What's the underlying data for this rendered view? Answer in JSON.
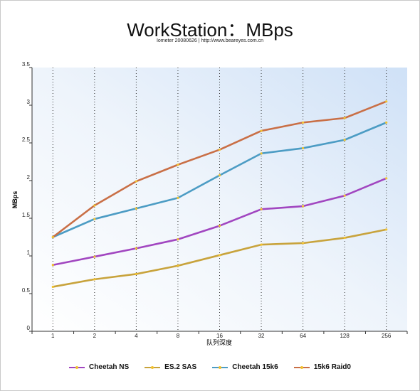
{
  "chart_data": {
    "type": "line",
    "title": "WorkStation：MBps",
    "subtitle": "Iometer 20080626 | http://www.beareyes.com.cn",
    "xlabel": "队列深度",
    "ylabel": "MBps",
    "categories": [
      "1",
      "2",
      "4",
      "8",
      "16",
      "32",
      "64",
      "128",
      "256"
    ],
    "ylim": [
      0,
      3.5
    ],
    "yticks": [
      "0",
      "0.5",
      "1",
      "1.5",
      "2",
      "2.5",
      "3",
      "3.5"
    ],
    "grid": "vertical-dotted",
    "legend_position": "bottom",
    "series": [
      {
        "name": "Cheetah NS",
        "color": "#a146c0",
        "values": [
          0.88,
          0.99,
          1.1,
          1.22,
          1.4,
          1.62,
          1.66,
          1.8,
          2.03
        ]
      },
      {
        "name": "ES.2 SAS",
        "color": "#c8a33c",
        "values": [
          0.59,
          0.69,
          0.76,
          0.87,
          1.01,
          1.15,
          1.17,
          1.24,
          1.35
        ]
      },
      {
        "name": "Cheetah 15k6",
        "color": "#4c9cc4",
        "values": [
          1.25,
          1.49,
          1.63,
          1.77,
          2.07,
          2.36,
          2.43,
          2.54,
          2.77
        ]
      },
      {
        "name": "15k6 Raid0",
        "color": "#c96f46",
        "values": [
          1.25,
          1.67,
          1.99,
          2.21,
          2.41,
          2.66,
          2.77,
          2.83,
          3.05
        ]
      }
    ]
  }
}
